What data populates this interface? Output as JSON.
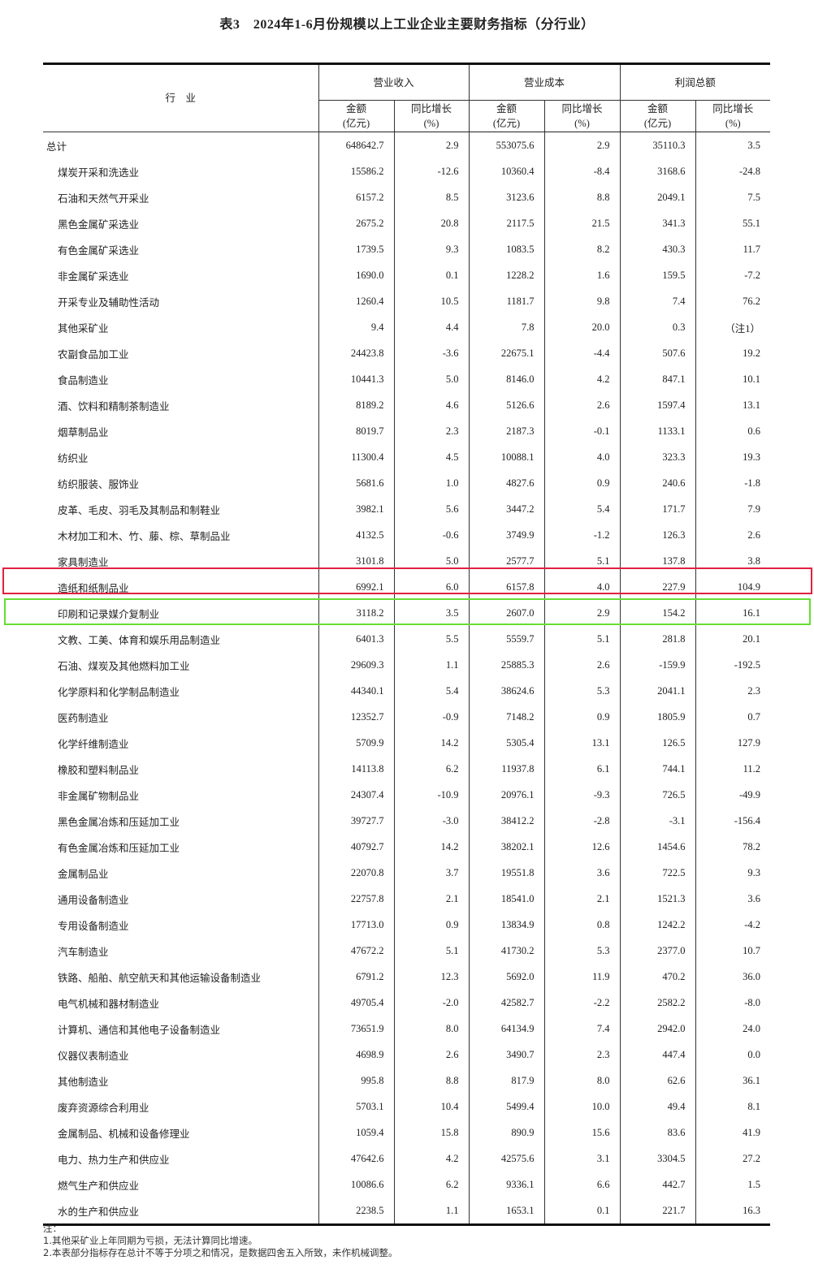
{
  "title": "表3　2024年1-6月份规模以上工业企业主要财务指标（分行业）",
  "header": {
    "industry": "行　业",
    "groups": [
      "营业收入",
      "营业成本",
      "利润总额"
    ],
    "amount": "金额",
    "amount_unit": "(亿元)",
    "growth": "同比增长",
    "growth_unit": "(%)"
  },
  "rows": [
    [
      "总计",
      "648642.7",
      "2.9",
      "553075.6",
      "2.9",
      "35110.3",
      "3.5"
    ],
    [
      "煤炭开采和洗选业",
      "15586.2",
      "-12.6",
      "10360.4",
      "-8.4",
      "3168.6",
      "-24.8"
    ],
    [
      "石油和天然气开采业",
      "6157.2",
      "8.5",
      "3123.6",
      "8.8",
      "2049.1",
      "7.5"
    ],
    [
      "黑色金属矿采选业",
      "2675.2",
      "20.8",
      "2117.5",
      "21.5",
      "341.3",
      "55.1"
    ],
    [
      "有色金属矿采选业",
      "1739.5",
      "9.3",
      "1083.5",
      "8.2",
      "430.3",
      "11.7"
    ],
    [
      "非金属矿采选业",
      "1690.0",
      "0.1",
      "1228.2",
      "1.6",
      "159.5",
      "-7.2"
    ],
    [
      "开采专业及辅助性活动",
      "1260.4",
      "10.5",
      "1181.7",
      "9.8",
      "7.4",
      "76.2"
    ],
    [
      "其他采矿业",
      "9.4",
      "4.4",
      "7.8",
      "20.0",
      "0.3",
      "（注1）"
    ],
    [
      "农副食品加工业",
      "24423.8",
      "-3.6",
      "22675.1",
      "-4.4",
      "507.6",
      "19.2"
    ],
    [
      "食品制造业",
      "10441.3",
      "5.0",
      "8146.0",
      "4.2",
      "847.1",
      "10.1"
    ],
    [
      "酒、饮料和精制茶制造业",
      "8189.2",
      "4.6",
      "5126.6",
      "2.6",
      "1597.4",
      "13.1"
    ],
    [
      "烟草制品业",
      "8019.7",
      "2.3",
      "2187.3",
      "-0.1",
      "1133.1",
      "0.6"
    ],
    [
      "纺织业",
      "11300.4",
      "4.5",
      "10088.1",
      "4.0",
      "323.3",
      "19.3"
    ],
    [
      "纺织服装、服饰业",
      "5681.6",
      "1.0",
      "4827.6",
      "0.9",
      "240.6",
      "-1.8"
    ],
    [
      "皮革、毛皮、羽毛及其制品和制鞋业",
      "3982.1",
      "5.6",
      "3447.2",
      "5.4",
      "171.7",
      "7.9"
    ],
    [
      "木材加工和木、竹、藤、棕、草制品业",
      "4132.5",
      "-0.6",
      "3749.9",
      "-1.2",
      "126.3",
      "2.6"
    ],
    [
      "家具制造业",
      "3101.8",
      "5.0",
      "2577.7",
      "5.1",
      "137.8",
      "3.8"
    ],
    [
      "造纸和纸制品业",
      "6992.1",
      "6.0",
      "6157.8",
      "4.0",
      "227.9",
      "104.9"
    ],
    [
      "印刷和记录媒介复制业",
      "3118.2",
      "3.5",
      "2607.0",
      "2.9",
      "154.2",
      "16.1"
    ],
    [
      "文教、工美、体育和娱乐用品制造业",
      "6401.3",
      "5.5",
      "5559.7",
      "5.1",
      "281.8",
      "20.1"
    ],
    [
      "石油、煤炭及其他燃料加工业",
      "29609.3",
      "1.1",
      "25885.3",
      "2.6",
      "-159.9",
      "-192.5"
    ],
    [
      "化学原料和化学制品制造业",
      "44340.1",
      "5.4",
      "38624.6",
      "5.3",
      "2041.1",
      "2.3"
    ],
    [
      "医药制造业",
      "12352.7",
      "-0.9",
      "7148.2",
      "0.9",
      "1805.9",
      "0.7"
    ],
    [
      "化学纤维制造业",
      "5709.9",
      "14.2",
      "5305.4",
      "13.1",
      "126.5",
      "127.9"
    ],
    [
      "橡胶和塑料制品业",
      "14113.8",
      "6.2",
      "11937.8",
      "6.1",
      "744.1",
      "11.2"
    ],
    [
      "非金属矿物制品业",
      "24307.4",
      "-10.9",
      "20976.1",
      "-9.3",
      "726.5",
      "-49.9"
    ],
    [
      "黑色金属冶炼和压延加工业",
      "39727.7",
      "-3.0",
      "38412.2",
      "-2.8",
      "-3.1",
      "-156.4"
    ],
    [
      "有色金属冶炼和压延加工业",
      "40792.7",
      "14.2",
      "38202.1",
      "12.6",
      "1454.6",
      "78.2"
    ],
    [
      "金属制品业",
      "22070.8",
      "3.7",
      "19551.8",
      "3.6",
      "722.5",
      "9.3"
    ],
    [
      "通用设备制造业",
      "22757.8",
      "2.1",
      "18541.0",
      "2.1",
      "1521.3",
      "3.6"
    ],
    [
      "专用设备制造业",
      "17713.0",
      "0.9",
      "13834.9",
      "0.8",
      "1242.2",
      "-4.2"
    ],
    [
      "汽车制造业",
      "47672.2",
      "5.1",
      "41730.2",
      "5.3",
      "2377.0",
      "10.7"
    ],
    [
      "铁路、船舶、航空航天和其他运输设备制造业",
      "6791.2",
      "12.3",
      "5692.0",
      "11.9",
      "470.2",
      "36.0"
    ],
    [
      "电气机械和器材制造业",
      "49705.4",
      "-2.0",
      "42582.7",
      "-2.2",
      "2582.2",
      "-8.0"
    ],
    [
      "计算机、通信和其他电子设备制造业",
      "73651.9",
      "8.0",
      "64134.9",
      "7.4",
      "2942.0",
      "24.0"
    ],
    [
      "仪器仪表制造业",
      "4698.9",
      "2.6",
      "3490.7",
      "2.3",
      "447.4",
      "0.0"
    ],
    [
      "其他制造业",
      "995.8",
      "8.8",
      "817.9",
      "8.0",
      "62.6",
      "36.1"
    ],
    [
      "废弃资源综合利用业",
      "5703.1",
      "10.4",
      "5499.4",
      "10.0",
      "49.4",
      "8.1"
    ],
    [
      "金属制品、机械和设备修理业",
      "1059.4",
      "15.8",
      "890.9",
      "15.6",
      "83.6",
      "41.9"
    ],
    [
      "电力、热力生产和供应业",
      "47642.6",
      "4.2",
      "42575.6",
      "3.1",
      "3304.5",
      "27.2"
    ],
    [
      "燃气生产和供应业",
      "10086.6",
      "6.2",
      "9336.1",
      "6.6",
      "442.7",
      "1.5"
    ],
    [
      "水的生产和供应业",
      "2238.5",
      "1.1",
      "1653.1",
      "0.1",
      "221.7",
      "16.3"
    ]
  ],
  "highlights": {
    "red_row": "造纸和纸制品业",
    "green_row": "印刷和记录媒介复制业",
    "red_color": "#e02040",
    "green_color": "#66dd33"
  },
  "notes": [
    "注：",
    "1.其他采矿业上年同期为亏损，无法计算同比增速。",
    "2.本表部分指标存在总计不等于分项之和情况，是数据四舍五入所致，未作机械调整。"
  ]
}
